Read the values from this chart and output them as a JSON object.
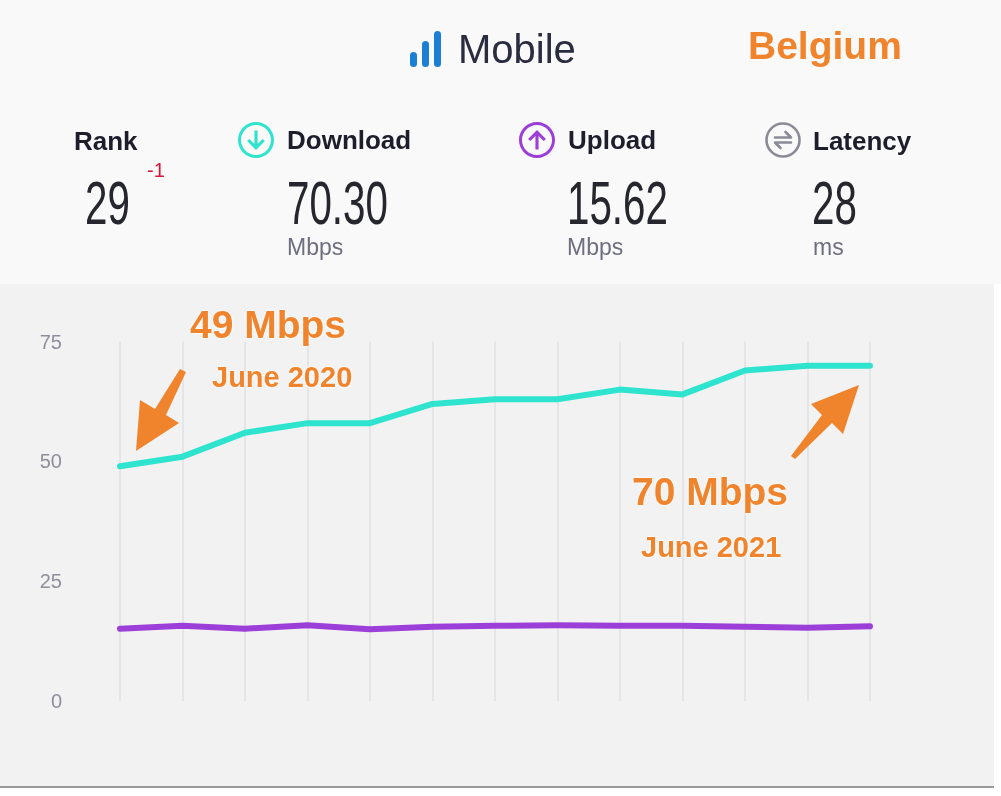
{
  "chart_data": {
    "type": "line",
    "title": "Belgium",
    "subtitle": "Mobile",
    "categories": [
      null,
      null,
      null,
      null,
      null,
      null,
      null,
      null,
      null,
      null,
      null,
      null,
      null
    ],
    "series": [
      {
        "name": "Download",
        "color": "#2ee4ce",
        "values": [
          49,
          51,
          56,
          58,
          58,
          62,
          63,
          63,
          65,
          64,
          69,
          70,
          70
        ]
      },
      {
        "name": "Upload",
        "color": "#9c3fd8",
        "values": [
          15.1,
          15.7,
          15.1,
          15.8,
          15.0,
          15.5,
          15.7,
          15.8,
          15.7,
          15.7,
          15.5,
          15.3,
          15.6
        ]
      }
    ],
    "ylim": [
      0,
      75
    ],
    "yticks": [
      0,
      25,
      50,
      75
    ],
    "grid": "x",
    "legend": "top",
    "tick_labels": "y",
    "marker": "none",
    "line_style": "solid",
    "annotations": [
      "Rank",
      "29",
      "-1",
      "70.30",
      "Mbps",
      "15.62",
      "Mbps",
      "Latency",
      "28",
      "ms",
      "49 Mbps",
      "June 2020",
      "70 Mbps",
      "June 2021"
    ]
  }
}
